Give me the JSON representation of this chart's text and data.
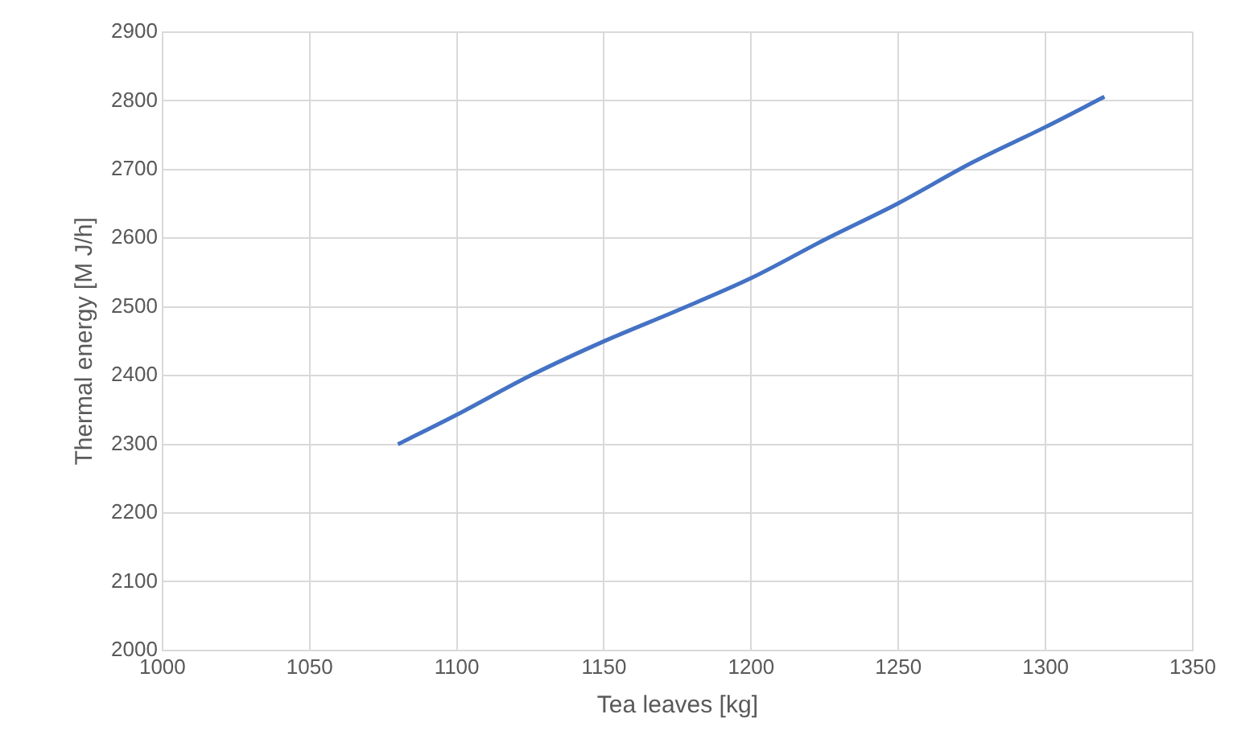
{
  "chart_data": {
    "type": "line",
    "xlabel": "Tea leaves [kg]",
    "ylabel": "Thermal energy [M J/h]",
    "x": [
      1080,
      1100,
      1125,
      1150,
      1175,
      1200,
      1225,
      1250,
      1275,
      1300,
      1320
    ],
    "series": [
      {
        "color": "#4472c4",
        "values": [
          2300,
          2343,
          2400,
          2450,
          2495,
          2542,
          2598,
          2651,
          2710,
          2762,
          2806
        ]
      }
    ],
    "xlim": [
      1000,
      1350
    ],
    "xticks": [
      1000,
      1050,
      1100,
      1150,
      1200,
      1250,
      1300,
      1350
    ],
    "ylim": [
      2000,
      2900
    ],
    "yticks": [
      2000,
      2100,
      2200,
      2300,
      2400,
      2500,
      2600,
      2700,
      2800,
      2900
    ],
    "grid": true,
    "legend": false,
    "marker": "none",
    "line_style": "solid"
  }
}
